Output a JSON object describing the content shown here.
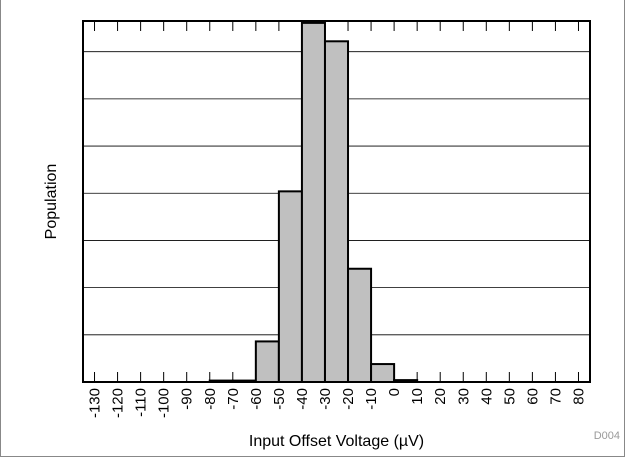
{
  "chart_data": {
    "type": "bar",
    "xlabel": "Input Offset Voltage (µV)",
    "ylabel": "Population",
    "figure_id": "D004",
    "categories": [
      "-130",
      "-120",
      "-110",
      "-100",
      "-90",
      "-80",
      "-70",
      "-60",
      "-50",
      "-40",
      "-30",
      "-20",
      "-10",
      "0",
      "10",
      "20",
      "30",
      "40",
      "50",
      "60",
      "70",
      "80"
    ],
    "bins": [
      {
        "from": -80,
        "to": -70,
        "value": 0.3
      },
      {
        "from": -70,
        "to": -60,
        "value": 0.3
      },
      {
        "from": -60,
        "to": -50,
        "value": 8.6
      },
      {
        "from": -50,
        "to": -40,
        "value": 40.4
      },
      {
        "from": -40,
        "to": -30,
        "value": 76.1
      },
      {
        "from": -30,
        "to": -20,
        "value": 72.2
      },
      {
        "from": -20,
        "to": -10,
        "value": 24.0
      },
      {
        "from": -10,
        "to": 0,
        "value": 3.8
      },
      {
        "from": 0,
        "to": 10,
        "value": 0.4
      }
    ],
    "xlim": [
      -135,
      85
    ],
    "ylim": [
      0,
      76.5
    ],
    "y_gridlines": [
      10,
      20,
      30,
      40,
      50,
      60,
      70
    ],
    "y_tick_labels": false,
    "grid": true,
    "bar_color": "#c0c0c0",
    "edge_color": "#000000"
  }
}
